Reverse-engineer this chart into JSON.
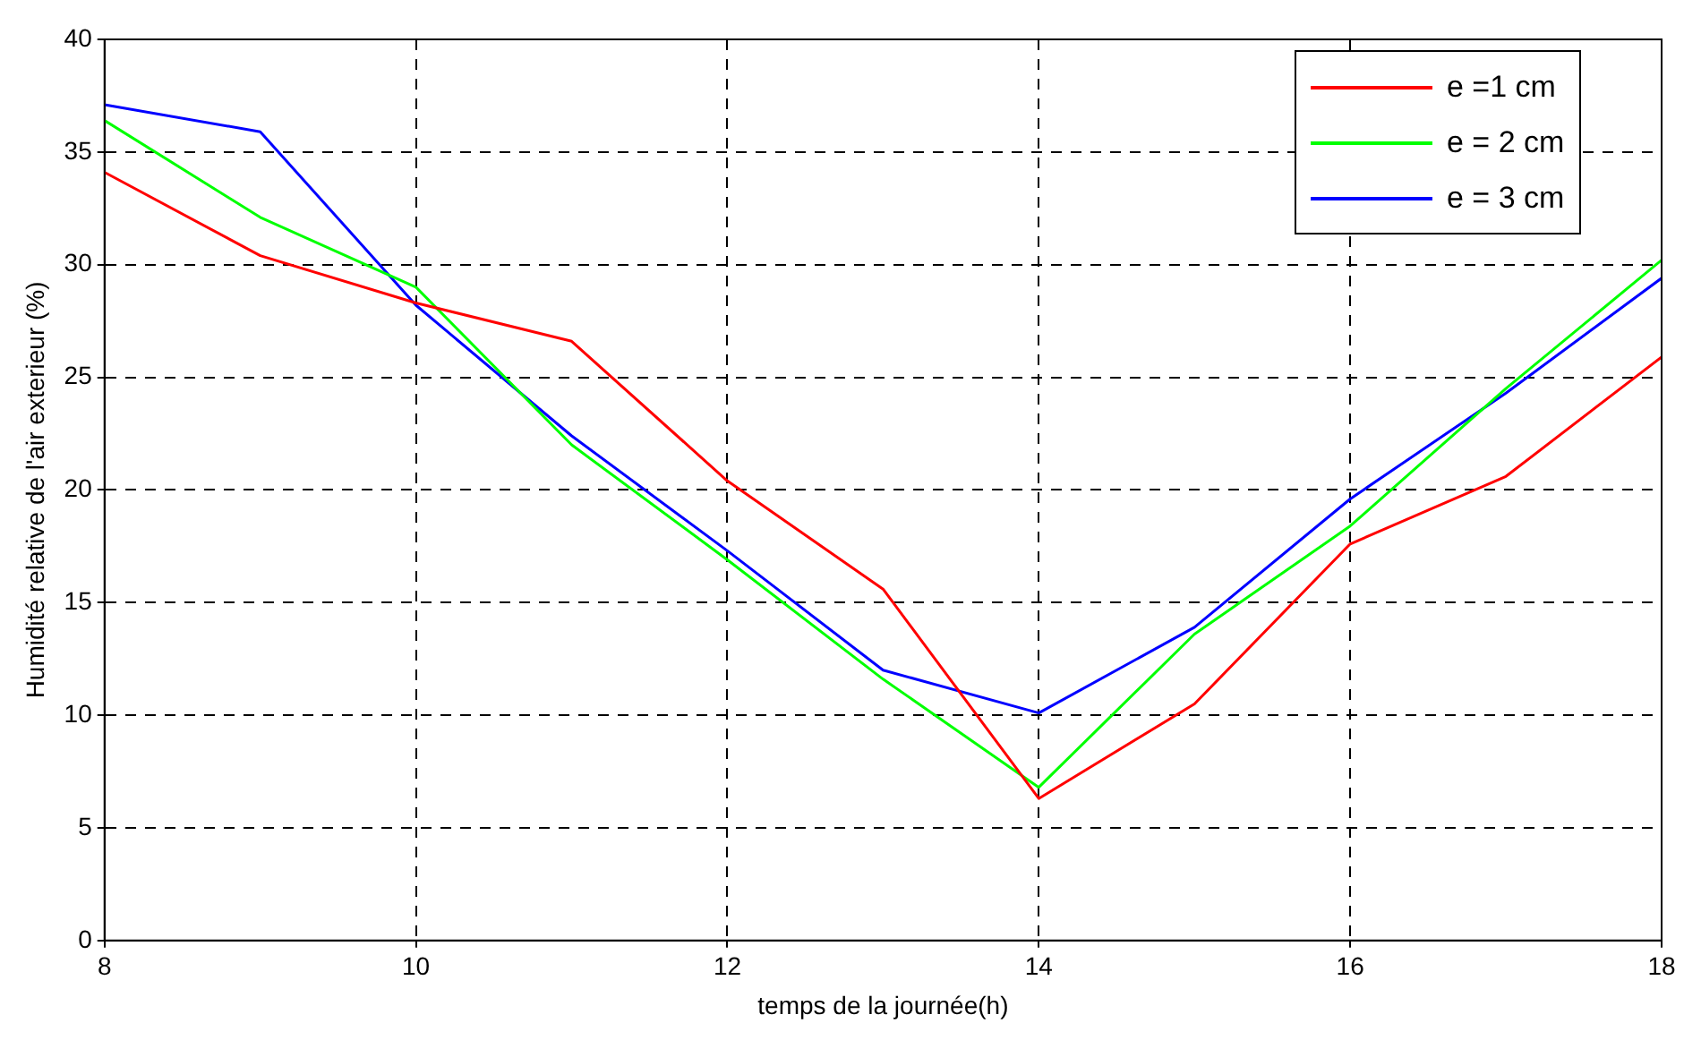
{
  "chart_data": {
    "type": "line",
    "xlabel": "temps de la journée(h)",
    "ylabel": "Humidité relative de l'air exterieur (%)",
    "x": [
      8,
      9,
      10,
      11,
      12,
      13,
      14,
      15,
      16,
      17,
      18
    ],
    "xlim": [
      8,
      18
    ],
    "xticks": [
      8,
      10,
      12,
      14,
      16,
      18
    ],
    "ylim": [
      0,
      40
    ],
    "yticks": [
      0,
      5,
      10,
      15,
      20,
      25,
      30,
      35,
      40
    ],
    "grid": true,
    "legend": "top right",
    "line_style": "solid",
    "marker": "none",
    "series": [
      {
        "name": "e =1 cm",
        "color": "#ff0000",
        "values": [
          34.1,
          30.4,
          28.3,
          26.6,
          20.4,
          15.6,
          6.3,
          10.5,
          17.6,
          20.6,
          25.9
        ]
      },
      {
        "name": "e = 2 cm",
        "color": "#00ff00",
        "values": [
          36.4,
          32.1,
          29.0,
          22.0,
          16.9,
          11.6,
          6.8,
          13.6,
          18.4,
          24.5,
          30.2
        ]
      },
      {
        "name": "e = 3 cm",
        "color": "#0000ff",
        "values": [
          37.1,
          35.9,
          28.2,
          22.4,
          17.3,
          12.0,
          10.1,
          13.9,
          19.6,
          24.3,
          29.4
        ]
      }
    ]
  }
}
